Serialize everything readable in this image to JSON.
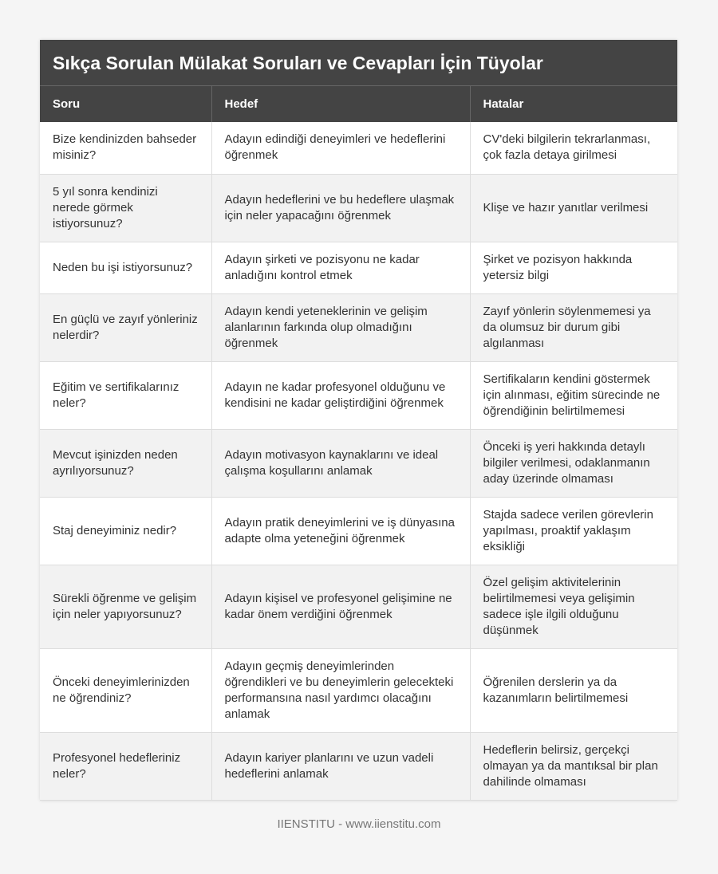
{
  "title": "Sıkça Sorulan Mülakat Soruları ve Cevapları İçin Tüyolar",
  "headers": [
    "Soru",
    "Hedef",
    "Hatalar"
  ],
  "rows": [
    [
      "Bize kendinizden bahseder misiniz?",
      "Adayın edindiği deneyimleri ve hedeflerini öğrenmek",
      "CV'deki bilgilerin tekrarlanması, çok fazla detaya girilmesi"
    ],
    [
      "5 yıl sonra kendinizi nerede görmek istiyorsunuz?",
      "Adayın hedeflerini ve bu hedeflere ulaşmak için neler yapacağını öğrenmek",
      "Klişe ve hazır yanıtlar verilmesi"
    ],
    [
      "Neden bu işi istiyorsunuz?",
      "Adayın şirketi ve pozisyonu ne kadar anladığını kontrol etmek",
      "Şirket ve pozisyon hakkında yetersiz bilgi"
    ],
    [
      "En güçlü ve zayıf yönleriniz nelerdir?",
      "Adayın kendi yeteneklerinin ve gelişim alanlarının farkında olup olmadığını öğrenmek",
      "Zayıf yönlerin söylenmemesi ya da olumsuz bir durum gibi algılanması"
    ],
    [
      "Eğitim ve sertifikalarınız neler?",
      "Adayın ne kadar profesyonel olduğunu ve kendisini ne kadar geliştirdiğini öğrenmek",
      "Sertifikaların kendini göstermek için alınması, eğitim sürecinde ne öğrendiğinin belirtilmemesi"
    ],
    [
      "Mevcut işinizden neden ayrılıyorsunuz?",
      "Adayın motivasyon kaynaklarını ve ideal çalışma koşullarını anlamak",
      "Önceki iş yeri hakkında detaylı bilgiler verilmesi, odaklanmanın aday üzerinde olmaması"
    ],
    [
      "Staj deneyiminiz nedir?",
      "Adayın pratik deneyimlerini ve iş dünyasına adapte olma yeteneğini öğrenmek",
      "Stajda sadece verilen görevlerin yapılması, proaktif yaklaşım eksikliği"
    ],
    [
      "Sürekli öğrenme ve gelişim için neler yapıyorsunuz?",
      "Adayın kişisel ve profesyonel gelişimine ne kadar önem verdiğini öğrenmek",
      "Özel gelişim aktivitelerinin belirtilmemesi veya gelişimin sadece işle ilgili olduğunu düşünmek"
    ],
    [
      "Önceki deneyimlerinizden ne öğrendiniz?",
      "Adayın geçmiş deneyimlerinden öğrendikleri ve bu deneyimlerin gelecekteki performansına nasıl yardımcı olacağını anlamak",
      "Öğrenilen derslerin ya da kazanımların belirtilmemesi"
    ],
    [
      "Profesyonel hedefleriniz neler?",
      "Adayın kariyer planlarını ve uzun vadeli hedeflerini anlamak",
      "Hedeflerin belirsiz, gerçekçi olmayan ya da mantıksal bir plan dahilinde olmaması"
    ]
  ],
  "footer": "IIENSTITU - www.iienstitu.com"
}
